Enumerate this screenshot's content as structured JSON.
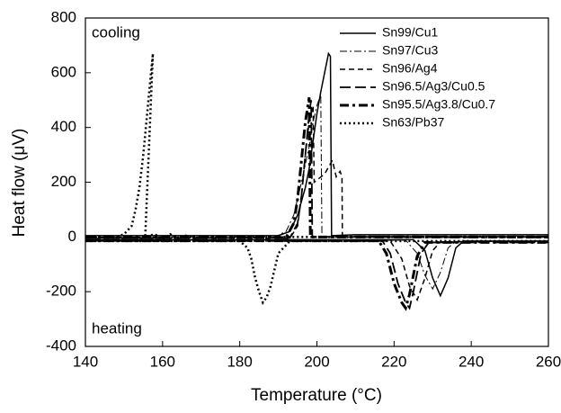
{
  "chart_data": {
    "type": "line",
    "xlabel": "Temperature (°C)",
    "ylabel": "Heat flow (μV)",
    "annotations": [
      "cooling",
      "heating"
    ],
    "xlim": [
      140,
      260
    ],
    "xticks": [
      140,
      160,
      180,
      200,
      220,
      240,
      260
    ],
    "ylim": [
      -400,
      800
    ],
    "yticks": [
      -400,
      -200,
      0,
      200,
      400,
      600,
      800
    ],
    "grid": false,
    "legend": "upper right",
    "series": [
      {
        "name": "Sn99/Cu1",
        "color": "#000000",
        "dash": "solid",
        "x": [
          140,
          190,
          193,
          195,
          197,
          198,
          200,
          201,
          202,
          203,
          203.5,
          203.8,
          210,
          260,
          null,
          140,
          225,
          228,
          230,
          232,
          234,
          236,
          238,
          260
        ],
        "values": [
          5,
          5,
          20,
          80,
          180,
          250,
          450,
          530,
          600,
          670,
          660,
          5,
          8,
          8,
          null,
          -10,
          -10,
          -50,
          -150,
          -215,
          -150,
          -40,
          -15,
          -15
        ]
      },
      {
        "name": "Sn97/Cu3",
        "color": "#000000",
        "dash": "dashdot",
        "x": [
          140,
          189,
          192,
          194,
          196,
          198,
          199,
          200,
          201,
          201.3,
          210,
          260,
          null,
          140,
          223,
          226,
          228,
          230,
          232,
          234,
          236,
          260
        ],
        "values": [
          0,
          0,
          20,
          80,
          200,
          330,
          420,
          480,
          520,
          0,
          3,
          3,
          null,
          -12,
          -12,
          -60,
          -140,
          -190,
          -130,
          -40,
          -16,
          -16
        ]
      },
      {
        "name": "Sn96/Ag4",
        "color": "#000000",
        "dash": "dashed",
        "x": [
          140,
          193,
          195,
          196,
          197,
          198,
          199,
          199.3,
          202,
          204,
          205,
          206,
          206.5,
          206.6,
          260,
          null,
          140,
          219,
          222,
          224,
          226,
          228,
          230,
          232,
          260
        ],
        "values": [
          -5,
          -5,
          40,
          150,
          300,
          420,
          480,
          200,
          230,
          280,
          220,
          240,
          220,
          0,
          -3,
          null,
          -15,
          -15,
          -80,
          -180,
          -230,
          -150,
          -50,
          -18,
          -18
        ]
      },
      {
        "name": "Sn96.5/Ag3/Cu0.5",
        "color": "#000000",
        "dash": "longdash",
        "x": [
          140,
          193,
          195,
          196,
          197,
          198,
          198.5,
          198.8,
          260,
          null,
          140,
          217,
          219,
          221,
          223,
          224,
          225,
          227,
          229,
          260
        ],
        "values": [
          -3,
          -3,
          50,
          150,
          300,
          450,
          500,
          0,
          0,
          null,
          -15,
          -15,
          -60,
          -170,
          -240,
          -260,
          -200,
          -60,
          -20,
          -20
        ]
      },
      {
        "name": "Sn95.5/Ag3.8/Cu0.7",
        "color": "#000000",
        "dash": "thickdashdot",
        "x": [
          140,
          192,
          194,
          195,
          196,
          197,
          198,
          198.3,
          260,
          null,
          140,
          216,
          218,
          220,
          222,
          223,
          224,
          226,
          228,
          260
        ],
        "values": [
          -2,
          -2,
          50,
          140,
          280,
          420,
          510,
          0,
          0,
          null,
          -14,
          -14,
          -60,
          -170,
          -240,
          -260,
          -210,
          -70,
          -20,
          -20
        ]
      },
      {
        "name": "Sn63/Pb37",
        "color": "#000000",
        "dash": "dotted",
        "x": [
          140,
          148,
          150,
          152,
          153,
          154,
          155,
          156,
          157,
          157.5,
          155.5,
          158,
          160,
          162,
          164,
          166,
          168,
          170,
          260,
          null,
          140,
          180,
          182,
          183,
          184,
          185,
          186,
          187,
          188,
          190,
          193,
          260
        ],
        "values": [
          0,
          0,
          10,
          40,
          100,
          180,
          300,
          450,
          600,
          670,
          0,
          10,
          -10,
          10,
          -10,
          5,
          -5,
          0,
          0,
          null,
          -15,
          -15,
          -40,
          -80,
          -150,
          -200,
          -240,
          -220,
          -180,
          -60,
          -15,
          -15
        ]
      }
    ]
  }
}
